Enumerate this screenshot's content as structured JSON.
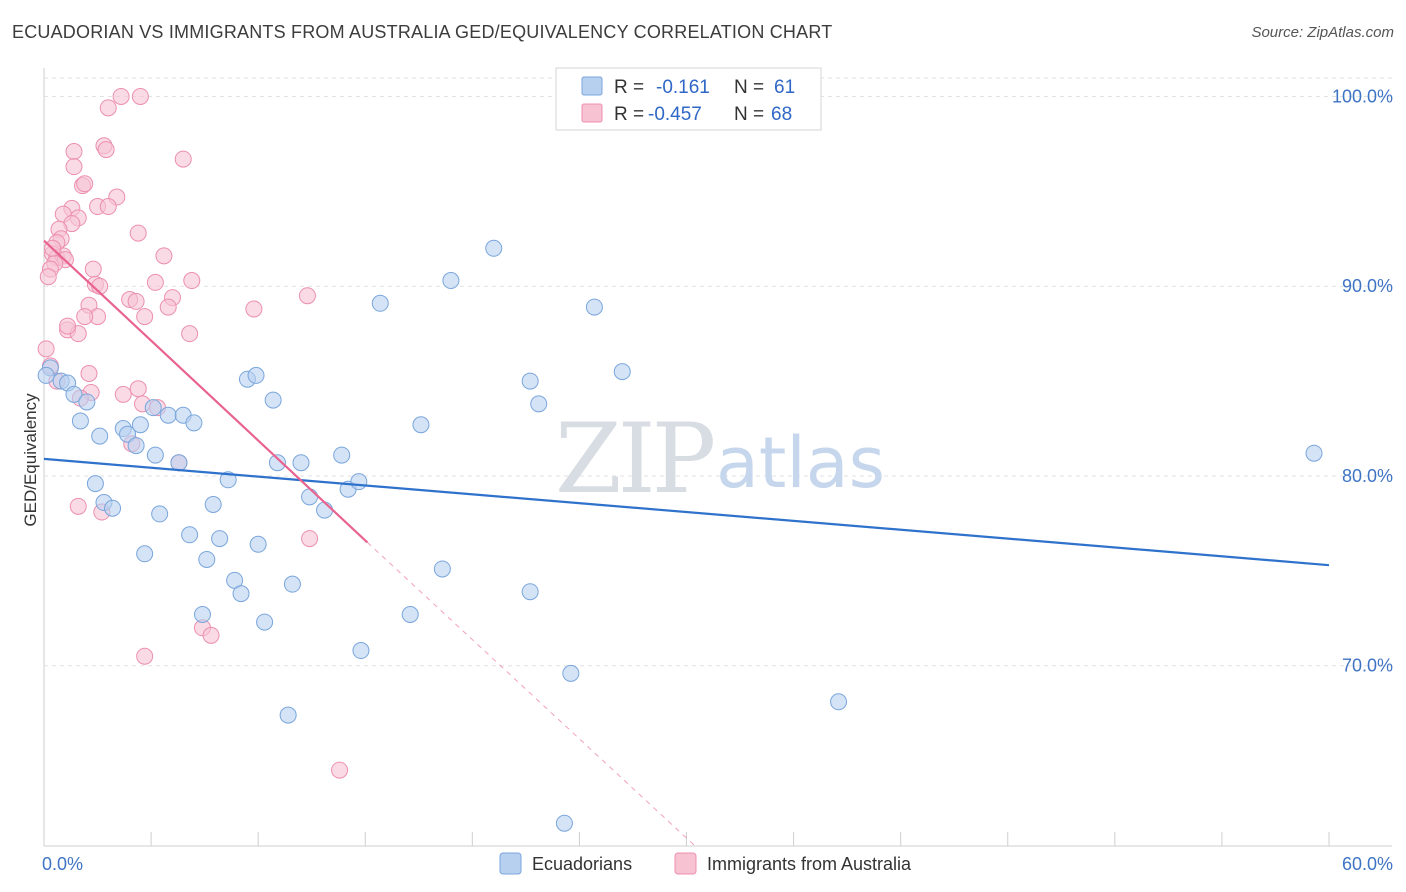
{
  "title": "ECUADORIAN VS IMMIGRANTS FROM AUSTRALIA GED/EQUIVALENCY CORRELATION CHART",
  "source": "Source: ZipAtlas.com",
  "watermark": {
    "zip": "ZIP",
    "atlas": "atlas"
  },
  "legend": {
    "rows": [
      {
        "r_label": "R =",
        "r_value": "-0.161",
        "n_label": "N =",
        "n_value": "61"
      },
      {
        "r_label": "R =",
        "r_value": "-0.457",
        "n_label": "N =",
        "n_value": "68"
      }
    ]
  },
  "bottom_legend": [
    "Ecuadorians",
    "Immigrants from Australia"
  ],
  "colors": {
    "blue_fill": "#b8d0f0",
    "blue_stroke": "#7aa6dc",
    "blue_line": "#2f72cc",
    "pink_fill": "#f7c3d3",
    "pink_stroke": "#ec8fae",
    "pink_line": "#e8638f",
    "grid": "#e2e2e2",
    "axis_label": "#3f74c4"
  },
  "chart_data": {
    "type": "scatter",
    "title": "ECUADORIAN VS IMMIGRANTS FROM AUSTRALIA GED/EQUIVALENCY CORRELATION CHART",
    "xlabel": "",
    "ylabel": "GED/Equivalency",
    "xlim": [
      0,
      60
    ],
    "ylim": [
      60.5,
      101.5
    ],
    "x_tick_labels": [
      "0.0%",
      "60.0%"
    ],
    "y_ticks": [
      70,
      80,
      90,
      100
    ],
    "y_tick_labels": [
      "70.0%",
      "80.0%",
      "90.0%",
      "100.0%"
    ],
    "grid": true,
    "legend_position": "top-center",
    "series": [
      {
        "name": "Ecuadorians",
        "r": -0.161,
        "n": 61,
        "trend": {
          "x": [
            0,
            60
          ],
          "y": [
            80.9,
            75.3
          ]
        },
        "points": [
          [
            0.3,
            85.7
          ],
          [
            0.8,
            85.0
          ],
          [
            1.1,
            84.9
          ],
          [
            1.4,
            84.3
          ],
          [
            2.0,
            83.9
          ],
          [
            1.7,
            82.9
          ],
          [
            3.7,
            82.5
          ],
          [
            2.6,
            82.1
          ],
          [
            3.9,
            82.2
          ],
          [
            4.3,
            81.6
          ],
          [
            4.5,
            82.7
          ],
          [
            5.1,
            83.6
          ],
          [
            5.8,
            83.2
          ],
          [
            6.5,
            83.2
          ],
          [
            7.0,
            82.8
          ],
          [
            5.2,
            81.1
          ],
          [
            6.3,
            80.7
          ],
          [
            2.4,
            79.6
          ],
          [
            2.8,
            78.6
          ],
          [
            3.2,
            78.3
          ],
          [
            5.4,
            78.0
          ],
          [
            7.9,
            78.5
          ],
          [
            8.6,
            79.8
          ],
          [
            6.8,
            76.9
          ],
          [
            8.2,
            76.7
          ],
          [
            4.7,
            75.9
          ],
          [
            7.6,
            75.6
          ],
          [
            10.0,
            76.4
          ],
          [
            8.9,
            74.5
          ],
          [
            9.2,
            73.8
          ],
          [
            11.6,
            74.3
          ],
          [
            7.4,
            72.7
          ],
          [
            10.3,
            72.3
          ],
          [
            11.4,
            67.4
          ],
          [
            9.5,
            85.1
          ],
          [
            9.9,
            85.3
          ],
          [
            10.7,
            84.0
          ],
          [
            10.9,
            80.7
          ],
          [
            12.0,
            80.7
          ],
          [
            13.9,
            81.1
          ],
          [
            12.4,
            78.9
          ],
          [
            13.1,
            78.2
          ],
          [
            14.2,
            79.3
          ],
          [
            14.7,
            79.7
          ],
          [
            14.8,
            70.8
          ],
          [
            15.7,
            89.1
          ],
          [
            17.1,
            72.7
          ],
          [
            17.6,
            82.7
          ],
          [
            18.6,
            75.1
          ],
          [
            19.0,
            90.3
          ],
          [
            21.0,
            92.0
          ],
          [
            22.7,
            85.0
          ],
          [
            23.1,
            83.8
          ],
          [
            22.7,
            73.9
          ],
          [
            24.6,
            69.6
          ],
          [
            24.3,
            61.7
          ],
          [
            25.7,
            88.9
          ],
          [
            27.0,
            85.5
          ],
          [
            37.1,
            68.1
          ],
          [
            59.3,
            81.2
          ],
          [
            0.1,
            85.3
          ]
        ]
      },
      {
        "name": "Immigrants from Australia",
        "r": -0.457,
        "n": 68,
        "trend": {
          "x": [
            0,
            15.1
          ],
          "y": [
            92.4,
            76.5
          ]
        },
        "trend_extension": {
          "x": [
            15.1,
            30.4
          ],
          "y": [
            76.5,
            60.5
          ]
        },
        "points": [
          [
            3.6,
            100.0
          ],
          [
            4.5,
            100.0
          ],
          [
            3.0,
            99.4
          ],
          [
            1.4,
            97.1
          ],
          [
            2.8,
            97.4
          ],
          [
            2.9,
            97.2
          ],
          [
            6.5,
            96.7
          ],
          [
            1.4,
            96.3
          ],
          [
            1.8,
            95.3
          ],
          [
            1.9,
            95.4
          ],
          [
            3.4,
            94.7
          ],
          [
            1.3,
            94.1
          ],
          [
            2.5,
            94.2
          ],
          [
            3.0,
            94.2
          ],
          [
            0.9,
            93.8
          ],
          [
            1.6,
            93.6
          ],
          [
            1.3,
            93.3
          ],
          [
            0.7,
            93.0
          ],
          [
            0.8,
            92.5
          ],
          [
            4.4,
            92.8
          ],
          [
            0.6,
            92.3
          ],
          [
            0.4,
            91.7
          ],
          [
            0.6,
            91.5
          ],
          [
            0.9,
            91.6
          ],
          [
            1.0,
            91.4
          ],
          [
            0.5,
            91.2
          ],
          [
            0.3,
            90.9
          ],
          [
            5.6,
            91.6
          ],
          [
            2.3,
            90.9
          ],
          [
            0.2,
            90.5
          ],
          [
            2.4,
            90.1
          ],
          [
            2.6,
            90.0
          ],
          [
            5.2,
            90.2
          ],
          [
            6.9,
            90.3
          ],
          [
            2.1,
            89.0
          ],
          [
            4.0,
            89.3
          ],
          [
            4.3,
            89.2
          ],
          [
            6.0,
            89.4
          ],
          [
            12.3,
            89.5
          ],
          [
            5.8,
            88.9
          ],
          [
            9.8,
            88.8
          ],
          [
            2.5,
            88.4
          ],
          [
            4.7,
            88.4
          ],
          [
            1.9,
            88.4
          ],
          [
            1.1,
            87.7
          ],
          [
            1.6,
            87.5
          ],
          [
            6.8,
            87.5
          ],
          [
            1.1,
            87.9
          ],
          [
            0.1,
            86.7
          ],
          [
            2.1,
            85.4
          ],
          [
            0.6,
            85.0
          ],
          [
            3.7,
            84.3
          ],
          [
            4.4,
            84.6
          ],
          [
            2.2,
            84.4
          ],
          [
            4.6,
            83.8
          ],
          [
            5.3,
            83.6
          ],
          [
            4.1,
            81.7
          ],
          [
            6.3,
            80.7
          ],
          [
            1.6,
            78.4
          ],
          [
            2.7,
            78.1
          ],
          [
            12.4,
            76.7
          ],
          [
            7.4,
            72.0
          ],
          [
            7.8,
            71.6
          ],
          [
            4.7,
            70.5
          ],
          [
            13.8,
            64.5
          ],
          [
            0.3,
            85.8
          ],
          [
            1.7,
            84.1
          ],
          [
            0.4,
            92.0
          ]
        ]
      }
    ]
  }
}
